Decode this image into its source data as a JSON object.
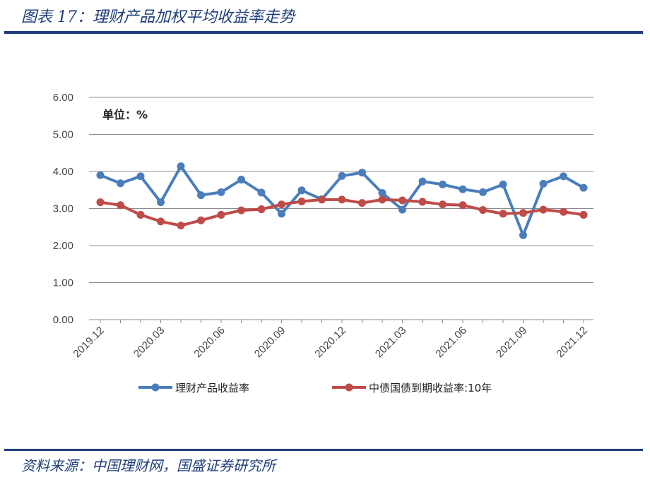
{
  "header": {
    "title": "图表 17：理财产品加权平均收益率走势"
  },
  "footer": {
    "source": "资料来源：中国理财网，国盛证券研究所"
  },
  "chart_data": {
    "type": "line",
    "unit_label": "单位：%",
    "ylim": [
      0,
      6
    ],
    "yticks": [
      "0.00",
      "1.00",
      "2.00",
      "3.00",
      "4.00",
      "5.00",
      "6.00"
    ],
    "x_tick_labels": [
      "2019.12",
      "2020.03",
      "2020.06",
      "2020.09",
      "2020.12",
      "2021.03",
      "2021.06",
      "2021.09",
      "2021.12"
    ],
    "grid": true,
    "legend_position": "bottom",
    "series": [
      {
        "name": "理财产品收益率",
        "color": "#4a7ebb",
        "values": [
          3.9,
          3.68,
          3.87,
          3.17,
          4.14,
          3.36,
          3.44,
          3.78,
          3.43,
          2.86,
          3.49,
          3.25,
          3.88,
          3.97,
          3.42,
          2.97,
          3.73,
          3.65,
          3.52,
          3.44,
          3.65,
          2.28,
          3.67,
          3.87,
          3.56
        ]
      },
      {
        "name": "中债国债到期收益率:10年",
        "color": "#be4b48",
        "values": [
          3.17,
          3.09,
          2.83,
          2.65,
          2.54,
          2.68,
          2.83,
          2.95,
          2.98,
          3.11,
          3.19,
          3.24,
          3.24,
          3.15,
          3.24,
          3.22,
          3.18,
          3.11,
          3.09,
          2.96,
          2.86,
          2.88,
          2.97,
          2.91,
          2.83
        ]
      }
    ]
  }
}
